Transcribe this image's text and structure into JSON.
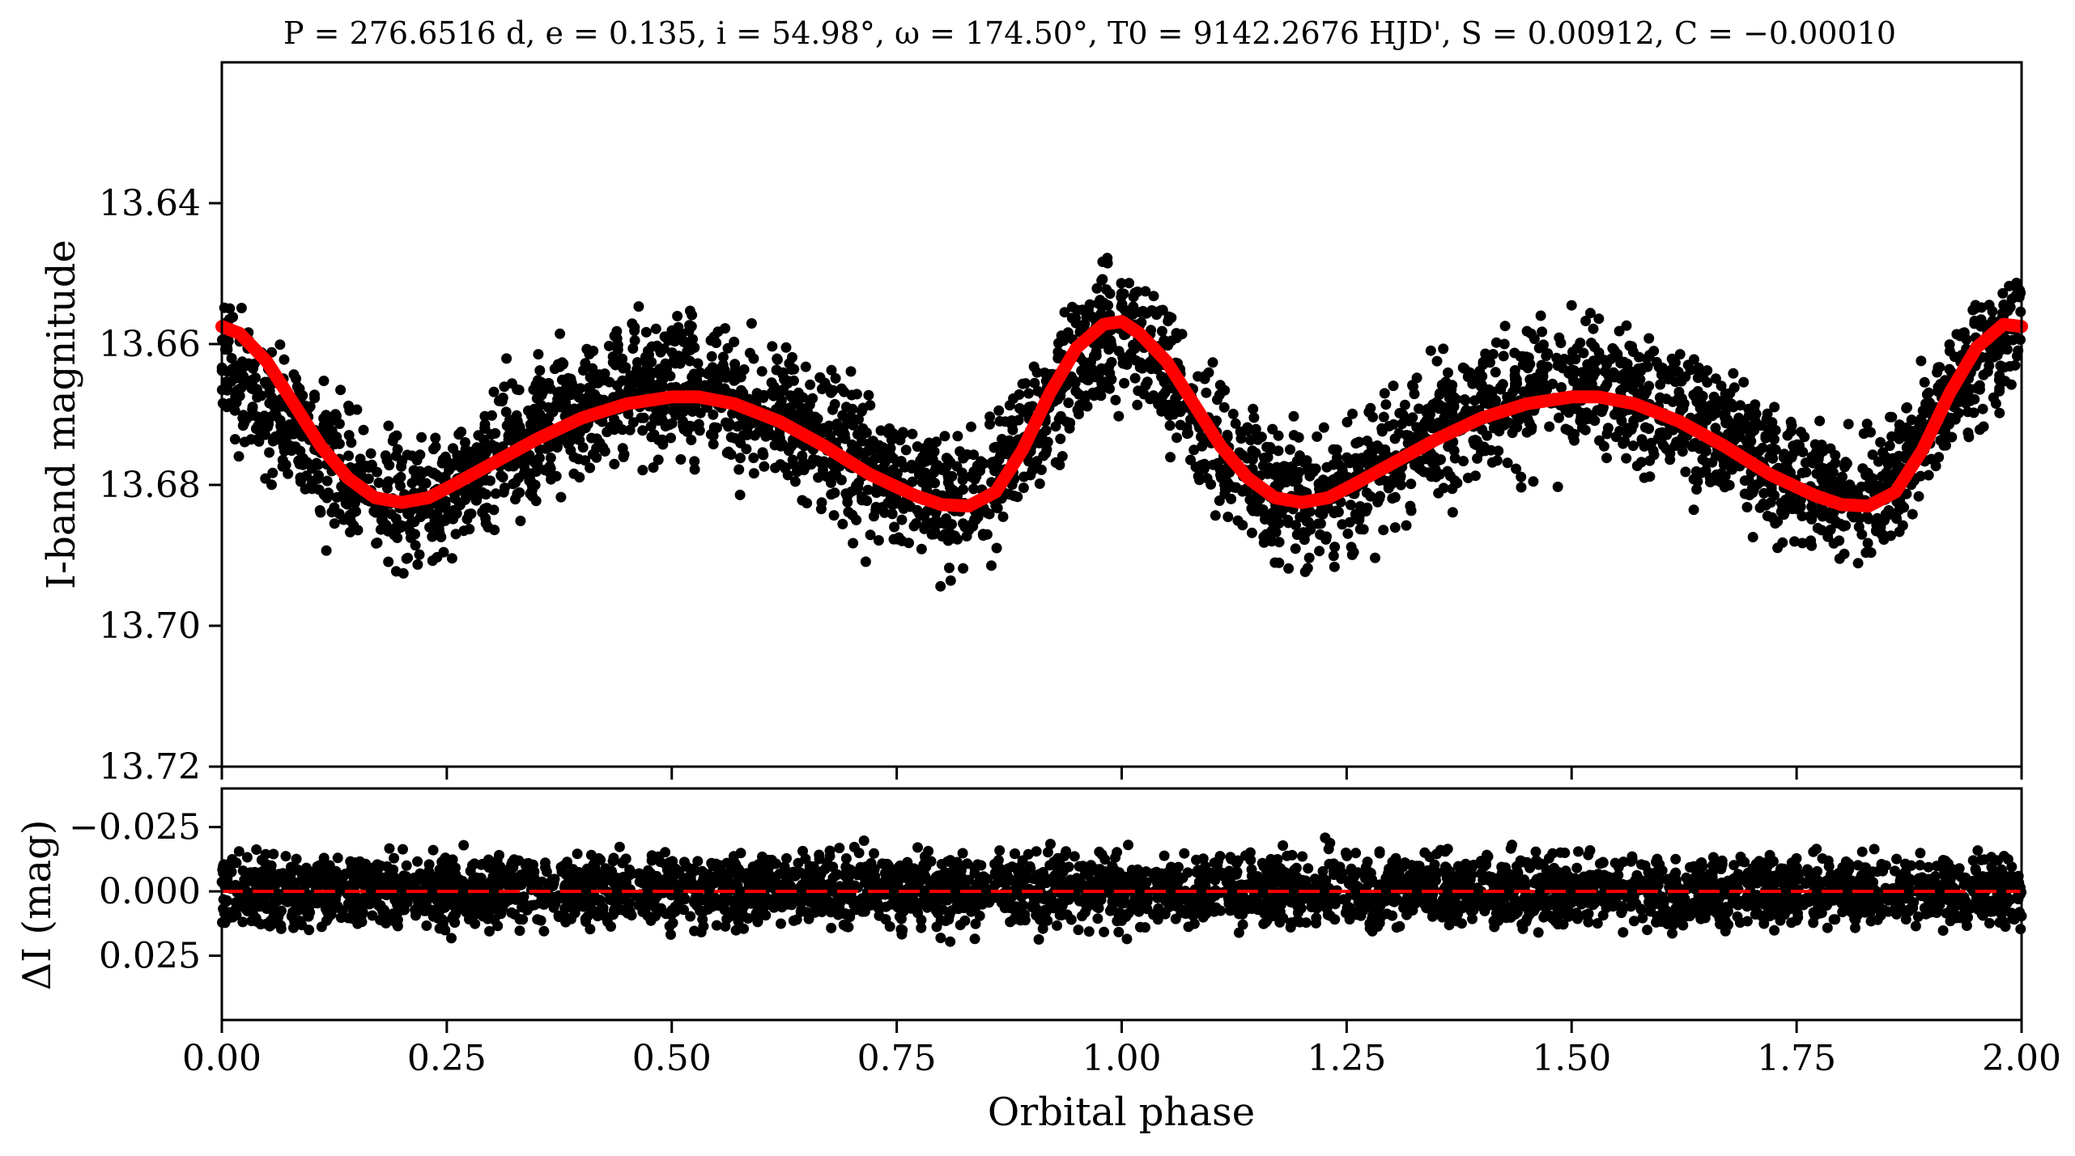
{
  "title": "P = 276.6516 d, e = 0.135, i = 54.98°, ω = 174.50°, T0 = 9142.2676 HJD', S = 0.00912, C = −0.00010",
  "chart_data": [
    {
      "type": "scatter",
      "panel": "light-curve",
      "ylabel": "I-band magnitude",
      "xlim": [
        0.0,
        2.0
      ],
      "ylim": [
        13.72,
        13.62
      ],
      "y_inverted": true,
      "x_ticks": [
        0.0,
        0.25,
        0.5,
        0.75,
        1.0,
        1.25,
        1.5,
        1.75,
        2.0
      ],
      "y_ticks": [
        "13.64",
        "13.66",
        "13.68",
        "13.70",
        "13.72"
      ],
      "y_tick_values": [
        13.64,
        13.66,
        13.68,
        13.7,
        13.72
      ],
      "grid": false,
      "series": [
        {
          "kind": "points",
          "color": "#000000",
          "description_of_shape": "dense phase-folded photometry spanning two cycles",
          "band_center": [
            [
              0.0,
              13.664
            ],
            [
              0.05,
              13.668
            ],
            [
              0.1,
              13.674
            ],
            [
              0.15,
              13.68
            ],
            [
              0.2,
              13.683
            ],
            [
              0.25,
              13.681
            ],
            [
              0.3,
              13.676
            ],
            [
              0.35,
              13.672
            ],
            [
              0.4,
              13.669
            ],
            [
              0.45,
              13.667
            ],
            [
              0.5,
              13.666
            ],
            [
              0.55,
              13.667
            ],
            [
              0.6,
              13.669
            ],
            [
              0.65,
              13.672
            ],
            [
              0.7,
              13.676
            ],
            [
              0.75,
              13.68
            ],
            [
              0.8,
              13.683
            ],
            [
              0.85,
              13.681
            ],
            [
              0.9,
              13.672
            ],
            [
              0.95,
              13.662
            ],
            [
              1.0,
              13.657
            ],
            [
              1.05,
              13.664
            ],
            [
              1.1,
              13.674
            ],
            [
              1.15,
              13.68
            ],
            [
              1.2,
              13.683
            ],
            [
              1.25,
              13.681
            ],
            [
              1.3,
              13.676
            ],
            [
              1.35,
              13.672
            ],
            [
              1.4,
              13.669
            ],
            [
              1.45,
              13.667
            ],
            [
              1.5,
              13.666
            ],
            [
              1.55,
              13.667
            ],
            [
              1.6,
              13.669
            ],
            [
              1.65,
              13.672
            ],
            [
              1.7,
              13.676
            ],
            [
              1.75,
              13.68
            ],
            [
              1.8,
              13.683
            ],
            [
              1.85,
              13.681
            ],
            [
              1.9,
              13.672
            ],
            [
              1.95,
              13.662
            ],
            [
              2.0,
              13.657
            ]
          ],
          "scatter_amplitude": 0.012
        },
        {
          "kind": "model-line",
          "color": "#ff0000",
          "points": [
            [
              0.0,
              13.6575
            ],
            [
              0.02,
              13.6585
            ],
            [
              0.05,
              13.6625
            ],
            [
              0.08,
              13.6685
            ],
            [
              0.11,
              13.6745
            ],
            [
              0.14,
              13.679
            ],
            [
              0.17,
              13.6818
            ],
            [
              0.2,
              13.6825
            ],
            [
              0.23,
              13.6818
            ],
            [
              0.26,
              13.6798
            ],
            [
              0.3,
              13.677
            ],
            [
              0.35,
              13.6735
            ],
            [
              0.4,
              13.6705
            ],
            [
              0.45,
              13.6685
            ],
            [
              0.5,
              13.6675
            ],
            [
              0.53,
              13.6675
            ],
            [
              0.57,
              13.6685
            ],
            [
              0.62,
              13.671
            ],
            [
              0.67,
              13.6745
            ],
            [
              0.72,
              13.6785
            ],
            [
              0.77,
              13.6815
            ],
            [
              0.8,
              13.6828
            ],
            [
              0.83,
              13.683
            ],
            [
              0.86,
              13.681
            ],
            [
              0.89,
              13.675
            ],
            [
              0.92,
              13.667
            ],
            [
              0.95,
              13.6605
            ],
            [
              0.98,
              13.6572
            ],
            [
              1.0,
              13.6568
            ],
            [
              1.02,
              13.6585
            ],
            [
              1.05,
              13.6625
            ],
            [
              1.08,
              13.6685
            ],
            [
              1.11,
              13.6745
            ],
            [
              1.14,
              13.679
            ],
            [
              1.17,
              13.6818
            ],
            [
              1.2,
              13.6825
            ],
            [
              1.23,
              13.6818
            ],
            [
              1.26,
              13.6798
            ],
            [
              1.3,
              13.677
            ],
            [
              1.35,
              13.6735
            ],
            [
              1.4,
              13.6705
            ],
            [
              1.45,
              13.6685
            ],
            [
              1.5,
              13.6675
            ],
            [
              1.53,
              13.6675
            ],
            [
              1.57,
              13.6685
            ],
            [
              1.62,
              13.671
            ],
            [
              1.67,
              13.6745
            ],
            [
              1.72,
              13.6785
            ],
            [
              1.77,
              13.6815
            ],
            [
              1.8,
              13.6828
            ],
            [
              1.83,
              13.683
            ],
            [
              1.86,
              13.681
            ],
            [
              1.89,
              13.675
            ],
            [
              1.92,
              13.667
            ],
            [
              1.95,
              13.6605
            ],
            [
              1.98,
              13.6572
            ],
            [
              2.0,
              13.6575
            ]
          ]
        }
      ]
    },
    {
      "type": "scatter",
      "panel": "residuals",
      "xlabel": "Orbital phase",
      "ylabel": "ΔI (mag)",
      "xlim": [
        0.0,
        2.0
      ],
      "ylim": [
        0.05,
        -0.04
      ],
      "y_inverted": true,
      "x_ticks": [
        "0.00",
        "0.25",
        "0.50",
        "0.75",
        "1.00",
        "1.25",
        "1.50",
        "1.75",
        "2.00"
      ],
      "x_tick_values": [
        0.0,
        0.25,
        0.5,
        0.75,
        1.0,
        1.25,
        1.5,
        1.75,
        2.0
      ],
      "y_ticks": [
        "−0.025",
        "0.000",
        "0.025"
      ],
      "y_tick_values": [
        -0.025,
        0.0,
        0.025
      ],
      "grid": false,
      "zero_line": {
        "style": "dashed",
        "color": "#ff0000",
        "value": 0.0
      },
      "series": [
        {
          "kind": "points",
          "color": "#000000",
          "scatter_amplitude": 0.018
        }
      ]
    }
  ]
}
